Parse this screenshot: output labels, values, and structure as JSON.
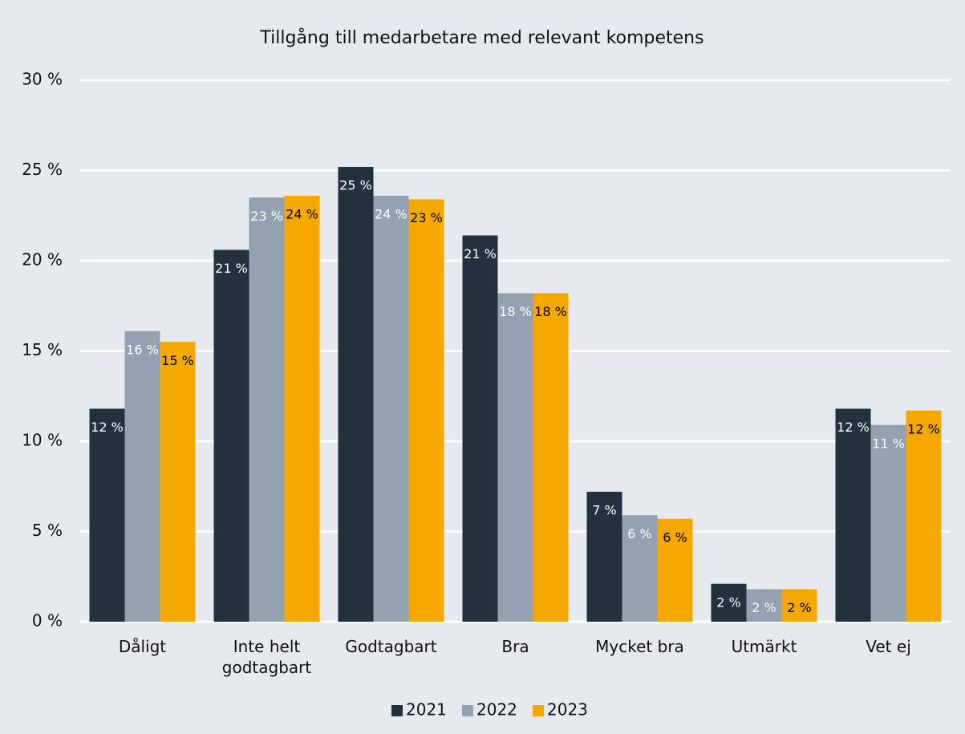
{
  "chart_data": {
    "type": "bar",
    "title": "Tillgång till medarbetare med relevant kompetens",
    "categories": [
      "Dåligt",
      "Inte helt godtagbart",
      "Godtagbart",
      "Bra",
      "Mycket bra",
      "Utmärkt",
      "Vet ej"
    ],
    "series": [
      {
        "name": "2021",
        "color": "#23303d",
        "label_color": "#ffffff",
        "values": [
          11.8,
          20.6,
          25.2,
          21.4,
          7.2,
          2.1,
          11.8
        ],
        "value_labels": [
          "12 %",
          "21 %",
          "25 %",
          "21 %",
          "7 %",
          "2 %",
          "12 %"
        ]
      },
      {
        "name": "2022",
        "color": "#94a1b2",
        "label_color": "#ffffff",
        "values": [
          16.1,
          23.5,
          23.6,
          18.2,
          5.9,
          1.8,
          10.9
        ],
        "value_labels": [
          "16 %",
          "23 %",
          "24 %",
          "18 %",
          "6 %",
          "2 %",
          "11 %"
        ]
      },
      {
        "name": "2023",
        "color": "#f5a800",
        "label_color": "#000000",
        "values": [
          15.5,
          23.6,
          23.4,
          18.2,
          5.7,
          1.8,
          11.7
        ],
        "value_labels": [
          "15 %",
          "24 %",
          "23 %",
          "18 %",
          "6 %",
          "2 %",
          "12 %"
        ]
      }
    ],
    "ylim": [
      0,
      30
    ],
    "yticks": [
      {
        "value": 0,
        "label": "0 %"
      },
      {
        "value": 5,
        "label": "5 %"
      },
      {
        "value": 10,
        "label": "10 %"
      },
      {
        "value": 15,
        "label": "15 %"
      },
      {
        "value": 20,
        "label": "20 %"
      },
      {
        "value": 25,
        "label": "25 %"
      },
      {
        "value": 30,
        "label": "30 %"
      }
    ],
    "grid": true,
    "legend": "bottom"
  }
}
